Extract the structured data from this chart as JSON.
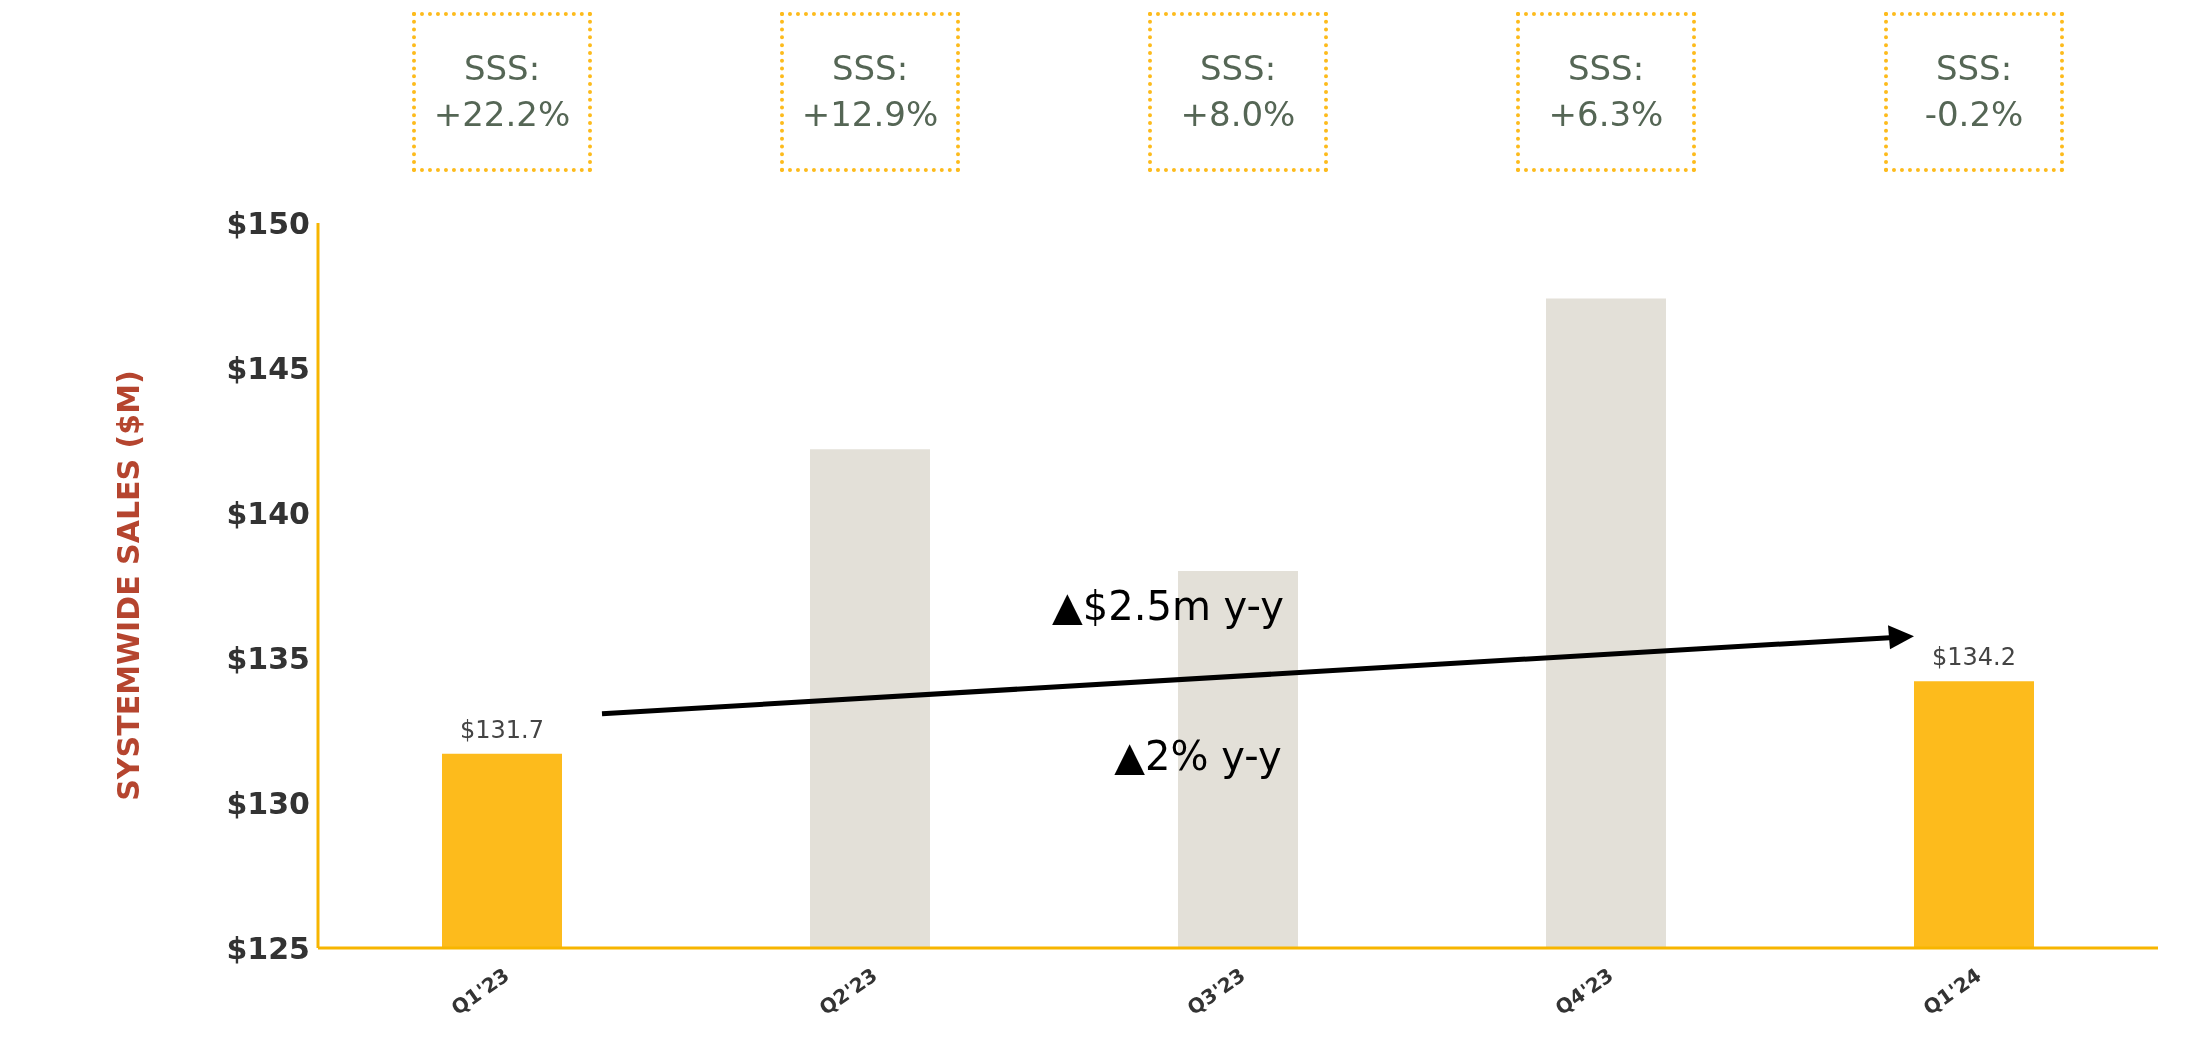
{
  "chart_data": {
    "type": "bar",
    "ylabel": "SYSTEMWIDE SALES ($M)",
    "categories": [
      "Q1'23",
      "Q2'23",
      "Q3'23",
      "Q4'23",
      "Q1'24"
    ],
    "values": [
      131.7,
      142.2,
      138.0,
      147.4,
      134.2
    ],
    "colors": [
      "#fdbb1c",
      "#e3e0d8",
      "#e3e0d8",
      "#e3e0d8",
      "#fdbb1c"
    ],
    "value_labels": [
      "$131.7",
      null,
      null,
      null,
      "$134.2"
    ],
    "ylim": [
      125,
      150
    ],
    "yticks": [
      {
        "value": 125,
        "label": "$125"
      },
      {
        "value": 130,
        "label": "$130"
      },
      {
        "value": 135,
        "label": "$135"
      },
      {
        "value": 140,
        "label": "$140"
      },
      {
        "value": 145,
        "label": "$145"
      },
      {
        "value": 150,
        "label": "$150"
      }
    ],
    "grid": false,
    "legend": false,
    "annotations": [
      "SSS: +22.2%",
      "SSS: +12.9%",
      "SSS: +8.0%",
      "SSS: +6.3%",
      "SSS: -0.2%",
      "▲$2.5m y-y",
      "▲2% y-y"
    ]
  }
}
